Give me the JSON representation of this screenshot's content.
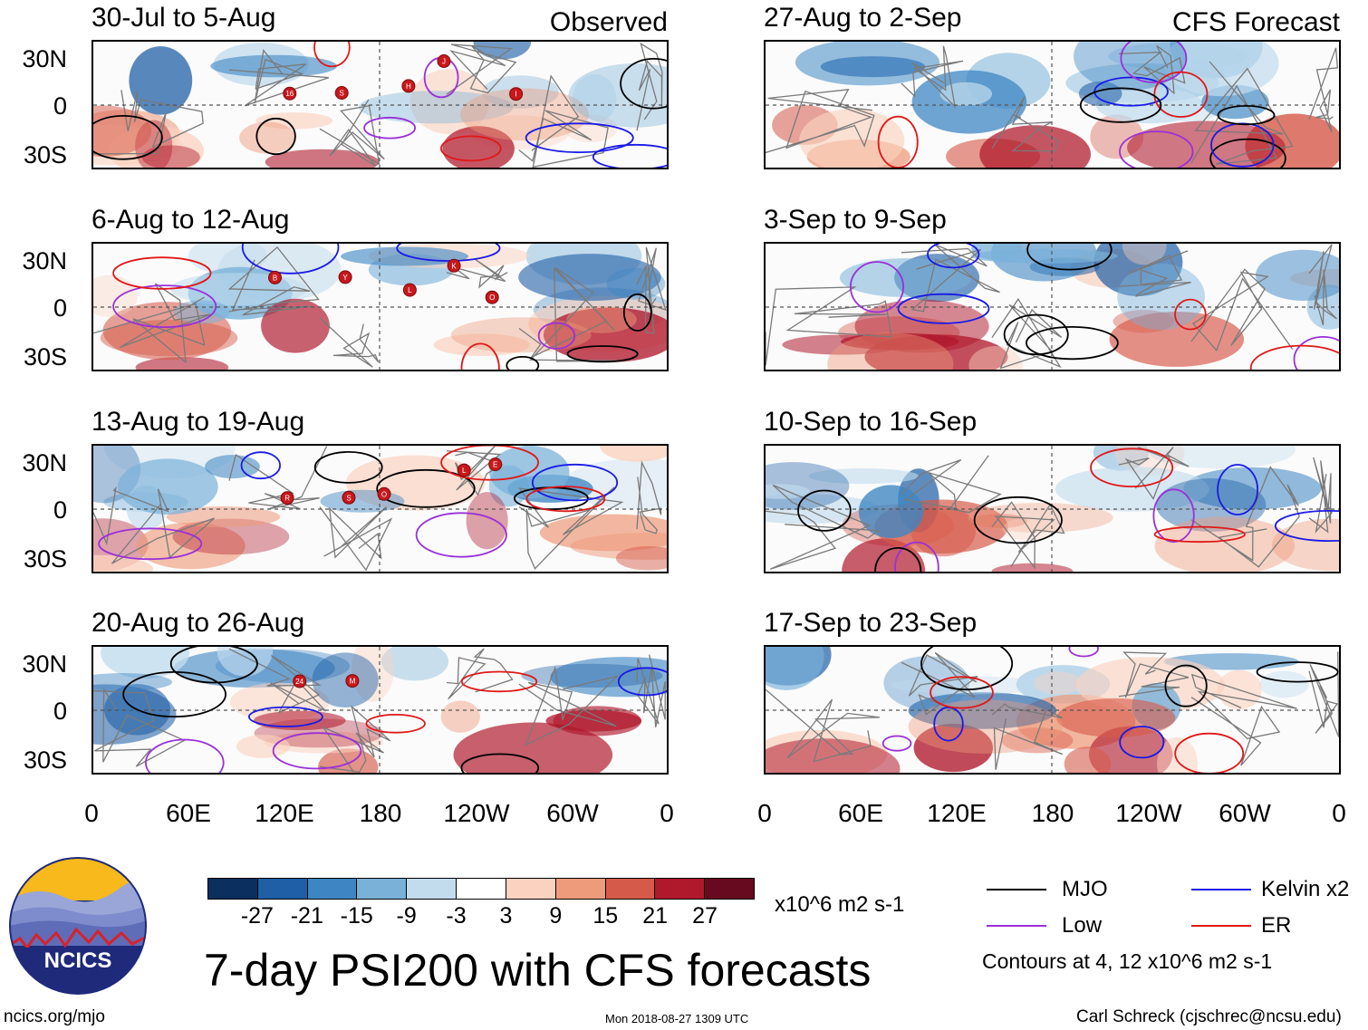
{
  "panels": [
    {
      "title": "30-Jul to 5-Aug",
      "tag": "Observed",
      "seed": 1,
      "storms": [
        "16",
        "S",
        "H",
        "J",
        "I"
      ]
    },
    {
      "title": "6-Aug to 12-Aug",
      "tag": "",
      "seed": 2,
      "storms": [
        "B",
        "Y",
        "L",
        "K",
        "O"
      ]
    },
    {
      "title": "13-Aug to 19-Aug",
      "tag": "",
      "seed": 3,
      "storms": [
        "R",
        "S",
        "O",
        "L",
        "E"
      ]
    },
    {
      "title": "20-Aug to 26-Aug",
      "tag": "",
      "seed": 4,
      "storms": [
        "24",
        "M"
      ]
    },
    {
      "title": "27-Aug to 2-Sep",
      "tag": "CFS Forecast",
      "seed": 5,
      "storms": []
    },
    {
      "title": "3-Sep to 9-Sep",
      "tag": "",
      "seed": 6,
      "storms": []
    },
    {
      "title": "10-Sep to 16-Sep",
      "tag": "",
      "seed": 7,
      "storms": []
    },
    {
      "title": "17-Sep to 23-Sep",
      "tag": "",
      "seed": 8,
      "storms": []
    }
  ],
  "y_labels": [
    "30N",
    "0",
    "30S"
  ],
  "x_labels": [
    "0",
    "60E",
    "120E",
    "180",
    "120W",
    "60W",
    "0"
  ],
  "colorbar": {
    "colors": [
      "#0b2f5e",
      "#1f5fa6",
      "#3d86c3",
      "#79b1d9",
      "#c2dcee",
      "#ffffff",
      "#fbd2bf",
      "#ee9b7c",
      "#d65a4a",
      "#b0182c",
      "#670a1f"
    ],
    "ticks": [
      "-27",
      "-21",
      "-15",
      "-9",
      "-3",
      "3",
      "9",
      "15",
      "21",
      "27"
    ],
    "units": "x10^6 m2 s-1"
  },
  "legend": {
    "items": [
      {
        "label": "MJO",
        "color": "#000000"
      },
      {
        "label": "Kelvin x2",
        "color": "#1a1ae6"
      },
      {
        "label": "Low",
        "color": "#9b30d9"
      },
      {
        "label": "ER",
        "color": "#e01818"
      }
    ],
    "note": "Contours at 4, 12 x10^6 m2 s-1"
  },
  "logo": {
    "text": "NCICS"
  },
  "main_title": "7-day PSI200 with CFS forecasts",
  "footer": {
    "url": "ncics.org/mjo",
    "timestamp": "Mon 2018-08-27 1309 UTC",
    "author": "Carl Schreck (cjschrec@ncsu.edu)"
  }
}
